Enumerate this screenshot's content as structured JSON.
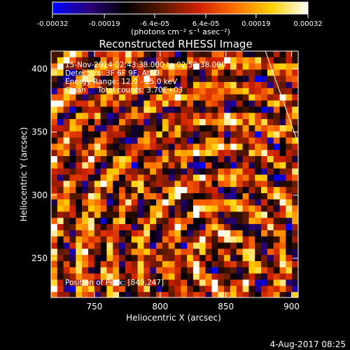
{
  "chart_data": {
    "type": "heatmap",
    "title": "Reconstructed RHESSI Image",
    "xlabel": "Heliocentric X (arcsec)",
    "ylabel": "Heliocentric Y (arcsec)",
    "xlim": [
      717,
      905
    ],
    "ylim": [
      219,
      414
    ],
    "x_ticks": [
      750,
      800,
      850,
      900
    ],
    "y_ticks": [
      250,
      300,
      350,
      400
    ],
    "x_tick_labels": [
      "750",
      "800",
      "850",
      "900"
    ],
    "y_tick_labels": [
      "250",
      "300",
      "350",
      "400"
    ],
    "colorbar": {
      "range": [
        -0.00032,
        0.00032
      ],
      "tick_values": [
        -0.00032,
        -0.00019,
        -6.4e-05,
        6.4e-05,
        0.00019,
        0.00032
      ],
      "tick_labels": [
        "-0.00032",
        "-0.00019",
        "-6.4e-05",
        "6.4e-05",
        "0.00019",
        "0.00032"
      ],
      "units_label": "(photons cm⁻² s⁻¹ asec⁻²)",
      "colors": [
        "#0000ff",
        "#2a007a",
        "#000000",
        "#5a1a00",
        "#d02000",
        "#ff7000",
        "#ffd000",
        "#ffffff"
      ]
    },
    "info_lines": [
      "15-Nov-2014 02:43:38.000 to 02:53:38.000",
      "Detectors: 3F 6F 9F, Att 0",
      "Energy Range: 12.0 - 25.0 keV",
      "Clean     Total counts: 3.70E+03"
    ],
    "peak_label": "Position of Peak: [849,247]",
    "peak": [
      849,
      247
    ],
    "limb_points": [
      [
        880,
        414
      ],
      [
        905,
        341
      ]
    ],
    "grid": false,
    "date_stamp": "4-Aug-2017 08:25"
  }
}
